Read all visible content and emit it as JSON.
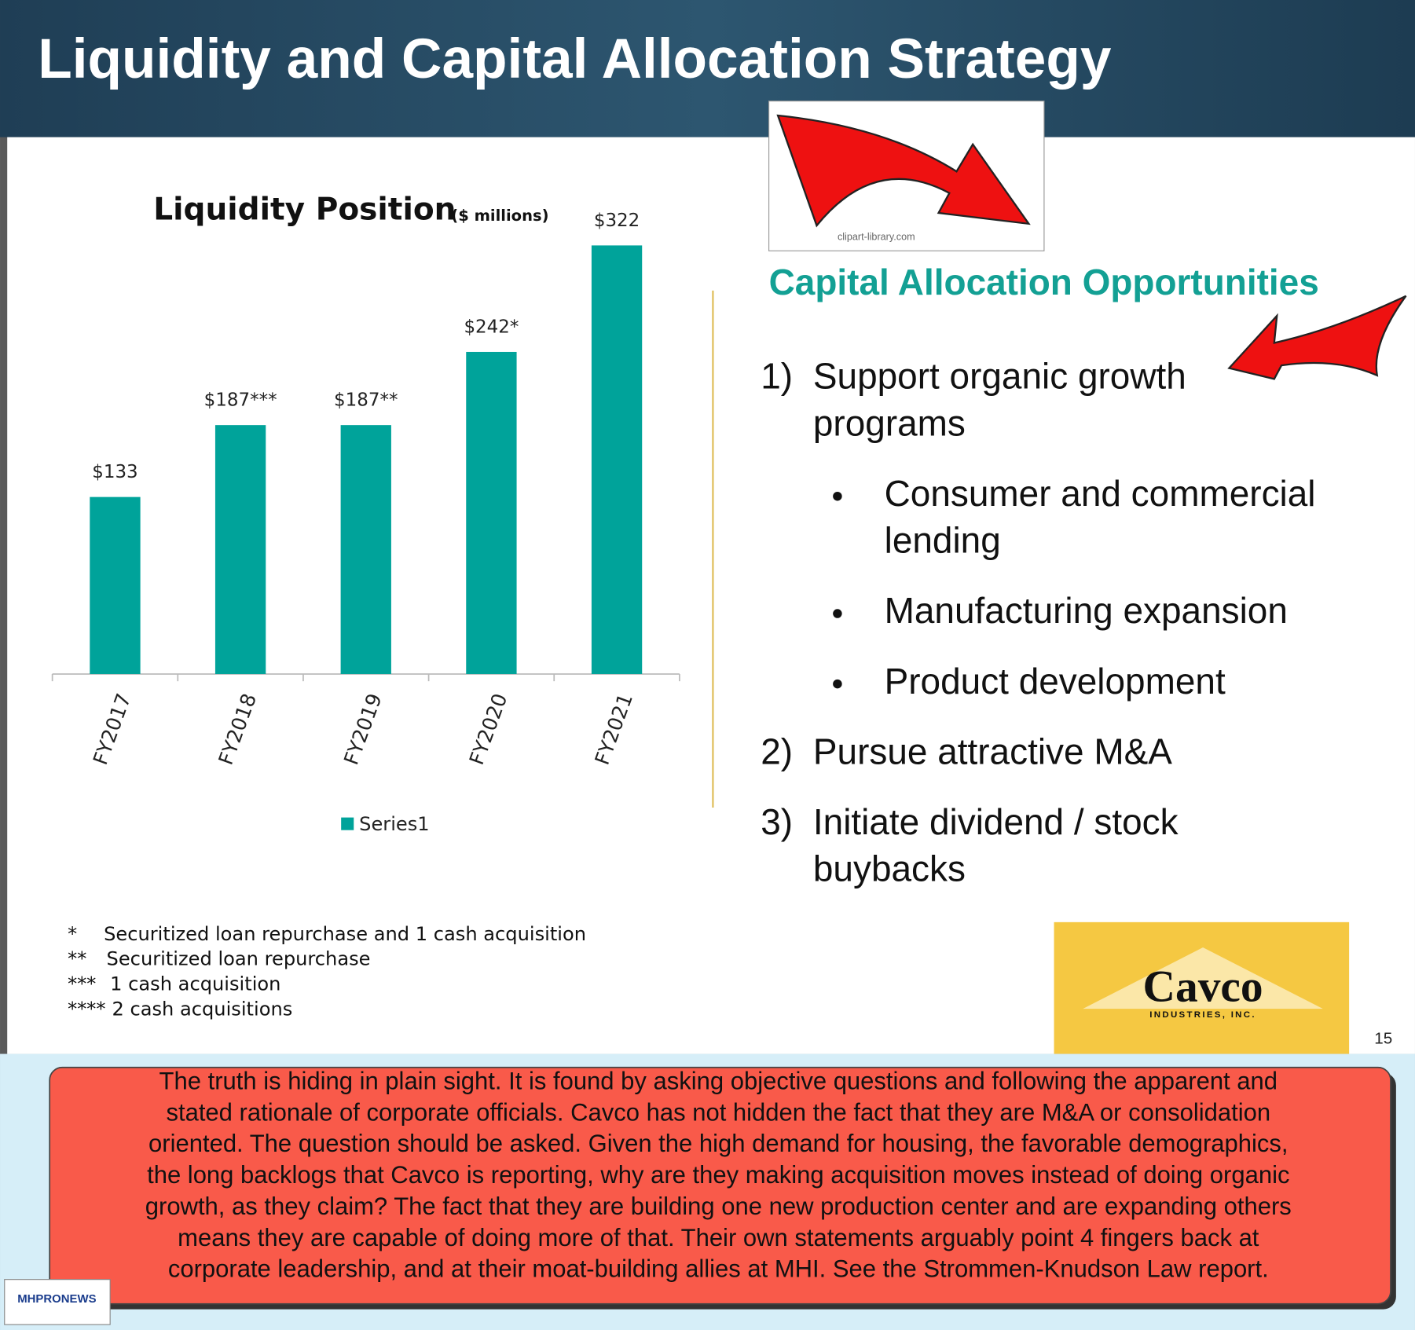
{
  "header": {
    "title": "Liquidity and Capital Allocation Strategy"
  },
  "clipart_credit": "clipart-library.com",
  "chart_data": {
    "type": "bar",
    "title": "Liquidity Position",
    "subtitle": "($ millions)",
    "categories": [
      "FY2017",
      "FY2018",
      "FY2019",
      "FY2020",
      "FY2021"
    ],
    "series": [
      {
        "name": "Series1",
        "color": "#00a39a",
        "values": [
          133,
          187,
          187,
          242,
          322
        ],
        "value_labels": [
          "$133",
          "$187***",
          "$187**",
          "$242*",
          "$322"
        ]
      }
    ]
  },
  "footnotes": [
    {
      "marker": "*",
      "text": "Securitized loan repurchase and 1 cash acquisition"
    },
    {
      "marker": "**",
      "text": "Securitized loan repurchase"
    },
    {
      "marker": "***",
      "text": "1 cash acquisition"
    },
    {
      "marker": "****",
      "text": "2 cash acquisitions"
    }
  ],
  "opportunities": {
    "heading": "Capital Allocation Opportunities",
    "items": [
      {
        "number": "1)",
        "lines": [
          "Support organic growth",
          "programs"
        ],
        "bullets": [
          {
            "lines": [
              "Consumer and commercial",
              "lending"
            ]
          },
          {
            "lines": [
              "Manufacturing expansion"
            ]
          },
          {
            "lines": [
              "Product development"
            ]
          }
        ]
      },
      {
        "number": "2)",
        "lines": [
          "Pursue attractive M&A"
        ]
      },
      {
        "number": "3)",
        "lines": [
          "Initiate dividend / stock",
          "buybacks"
        ]
      }
    ]
  },
  "logo": {
    "name": "Cavco",
    "subtitle": "INDUSTRIES, INC."
  },
  "page_number": "15",
  "commentary": {
    "lines": [
      "The truth is hiding in plain sight. It is found by asking objective questions and following the apparent and",
      "stated rationale of corporate officials.  Cavco has not hidden the fact that they are M&A or consolidation",
      "oriented.  The question should be asked. Given the high demand for housing, the favorable demographics,",
      "the long backlogs that Cavco is reporting, why are they making acquisition moves instead of doing organic",
      "growth, as they claim? The fact that they are building one new production center and are expanding others",
      "means they are capable of doing more of that. Their own statements arguably point 4 fingers back at",
      "corporate leadership, and at their moat-building allies at MHI. See the Strommen-Knudson Law report."
    ]
  },
  "watermark": {
    "text": "MHPRONEWS"
  }
}
